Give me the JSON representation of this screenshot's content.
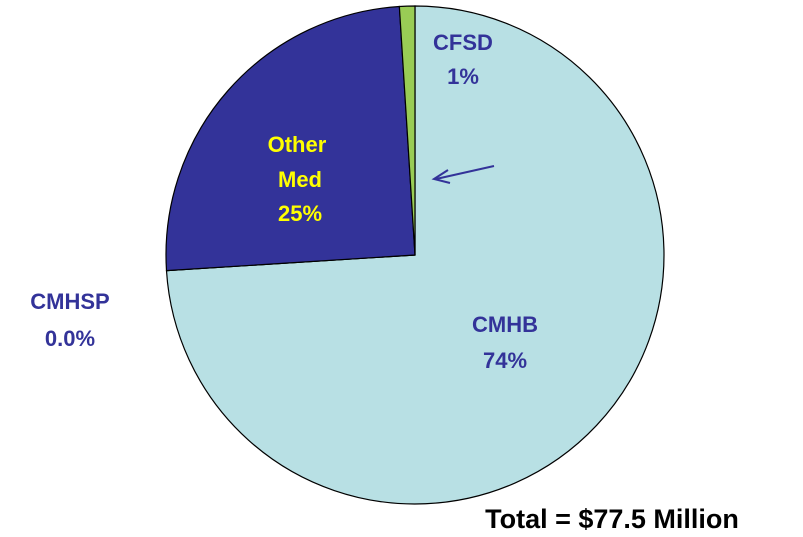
{
  "chart_data": {
    "type": "pie",
    "annotation": "Total = $77.5 Million",
    "categories": [
      "CMHB",
      "CMHSP",
      "Other Med",
      "CFSD"
    ],
    "values": [
      74,
      0,
      25,
      1
    ],
    "value_labels": [
      "74%",
      "0.0%",
      "25%",
      "1%"
    ],
    "colors": [
      "#b8e0e4",
      "#c8c8ff",
      "#333399",
      "#99cc55"
    ]
  }
}
